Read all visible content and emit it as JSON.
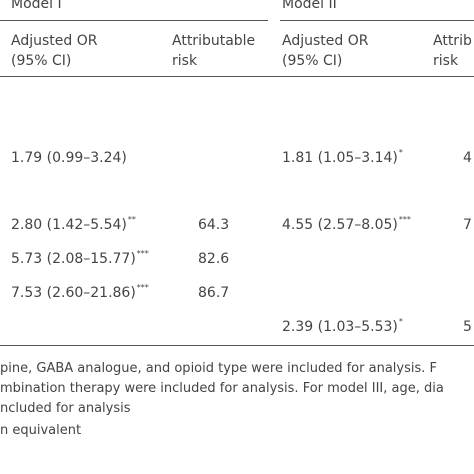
{
  "header": {
    "model1": "Model I",
    "model2": "Model II",
    "sub": {
      "m1_or_line1": "Adjusted OR",
      "m1_or_line2": "(95% CI)",
      "m1_ar_line1": "Attributable",
      "m1_ar_line2": "risk",
      "m2_or_line1": "Adjusted OR",
      "m2_or_line2": "(95% CI)",
      "m2_ar_line1": "Attrib",
      "m2_ar_line2": "risk"
    }
  },
  "rows": [
    {
      "m1_or": "1.79 (0.99–3.24)",
      "m1_sig": "",
      "m1_ar": "",
      "m2_or": "1.81 (1.05–3.14)",
      "m2_sig": "*",
      "m2_ar": "4"
    },
    {
      "m1_or": "2.80 (1.42–5.54)",
      "m1_sig": "**",
      "m1_ar": "64.3",
      "m2_or": "4.55 (2.57–8.05)",
      "m2_sig": "***",
      "m2_ar": "7"
    },
    {
      "m1_or": "5.73 (2.08–15.77)",
      "m1_sig": "***",
      "m1_ar": "82.6",
      "m2_or": "",
      "m2_sig": "",
      "m2_ar": ""
    },
    {
      "m1_or": "7.53 (2.60–21.86)",
      "m1_sig": "***",
      "m1_ar": "86.7",
      "m2_or": "",
      "m2_sig": "",
      "m2_ar": ""
    },
    {
      "m1_or": "",
      "m1_sig": "",
      "m1_ar": "",
      "m2_or": "2.39 (1.03–5.53)",
      "m2_sig": "*",
      "m2_ar": "5"
    }
  ],
  "footnotes": [
    "pine, GABA analogue, and opioid type were included for analysis. F",
    "mbination therapy were included for analysis. For model III, age, dia",
    "ncluded for analysis",
    "n equivalent"
  ]
}
